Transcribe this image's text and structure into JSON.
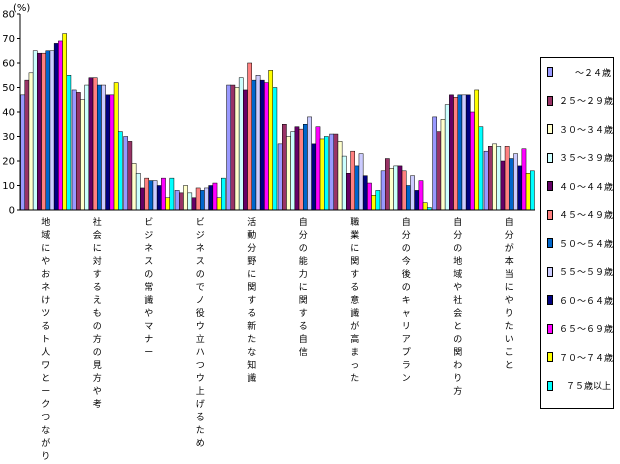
{
  "chart_data": {
    "type": "bar",
    "ylabel": "(%)",
    "ylim": [
      0,
      80
    ],
    "yticks": [
      "0",
      "10",
      "20",
      "30",
      "40",
      "50",
      "60",
      "70",
      "80"
    ],
    "categories": [
      "地域にやおネけツるト人ワとークつながり",
      "社会に対するえもの方の見方や考",
      "ビジネスの常識やマナー",
      "ビジネスのでノ役ウ立ハつウ上げるため",
      "活動分野に関する新たな知識",
      "自分の能力に関する自信",
      "職業に関する意識が高まった",
      "自分の今後のキャリアプラン",
      "自分の地域や社会との関わり方",
      "自分が本当にやりたいこと"
    ],
    "series": [
      {
        "name": "～２４歳",
        "color": "#9999ff",
        "values": [
          47,
          49,
          30,
          8,
          51,
          27,
          31,
          16,
          38,
          24
        ]
      },
      {
        "name": "２５～２９歳",
        "color": "#993366",
        "values": [
          53,
          48,
          28,
          7,
          51,
          35,
          31,
          21,
          32,
          26
        ]
      },
      {
        "name": "３０～３４歳",
        "color": "#ffffcc",
        "values": [
          56,
          45,
          19,
          10,
          50,
          30,
          28,
          17,
          37,
          27
        ]
      },
      {
        "name": "３５～３９歳",
        "color": "#ccffff",
        "values": [
          65,
          51,
          15,
          7,
          54,
          32,
          22,
          18,
          43,
          26
        ]
      },
      {
        "name": "４０～４４歳",
        "color": "#660066",
        "values": [
          64,
          54,
          9,
          5,
          49,
          34,
          15,
          18,
          47,
          20
        ]
      },
      {
        "name": "４５～４９歳",
        "color": "#ff8080",
        "values": [
          64,
          54,
          13,
          9,
          60,
          33,
          24,
          16,
          46,
          26
        ]
      },
      {
        "name": "５０～５４歳",
        "color": "#0066cc",
        "values": [
          65,
          51,
          12,
          8,
          53,
          35,
          18,
          10,
          47,
          21
        ]
      },
      {
        "name": "５５～５９歳",
        "color": "#ccccff",
        "values": [
          65,
          51,
          12,
          9,
          55,
          38,
          23,
          14,
          47,
          23
        ]
      },
      {
        "name": "６０～６４歳",
        "color": "#000080",
        "values": [
          68,
          47,
          10,
          10,
          53,
          27,
          14,
          8,
          47,
          18
        ]
      },
      {
        "name": "６５～６９歳",
        "color": "#ff00ff",
        "values": [
          69,
          47,
          13,
          11,
          52,
          34,
          11,
          12,
          40,
          25
        ]
      },
      {
        "name": "７０～７４歳",
        "color": "#ffff00",
        "values": [
          72,
          52,
          5,
          5,
          57,
          29,
          6,
          3,
          49,
          15
        ]
      },
      {
        "name": "７５歳以上",
        "color": "#00ffff",
        "values": [
          55,
          32,
          13,
          13,
          50,
          30,
          8,
          1,
          34,
          16
        ]
      }
    ]
  }
}
